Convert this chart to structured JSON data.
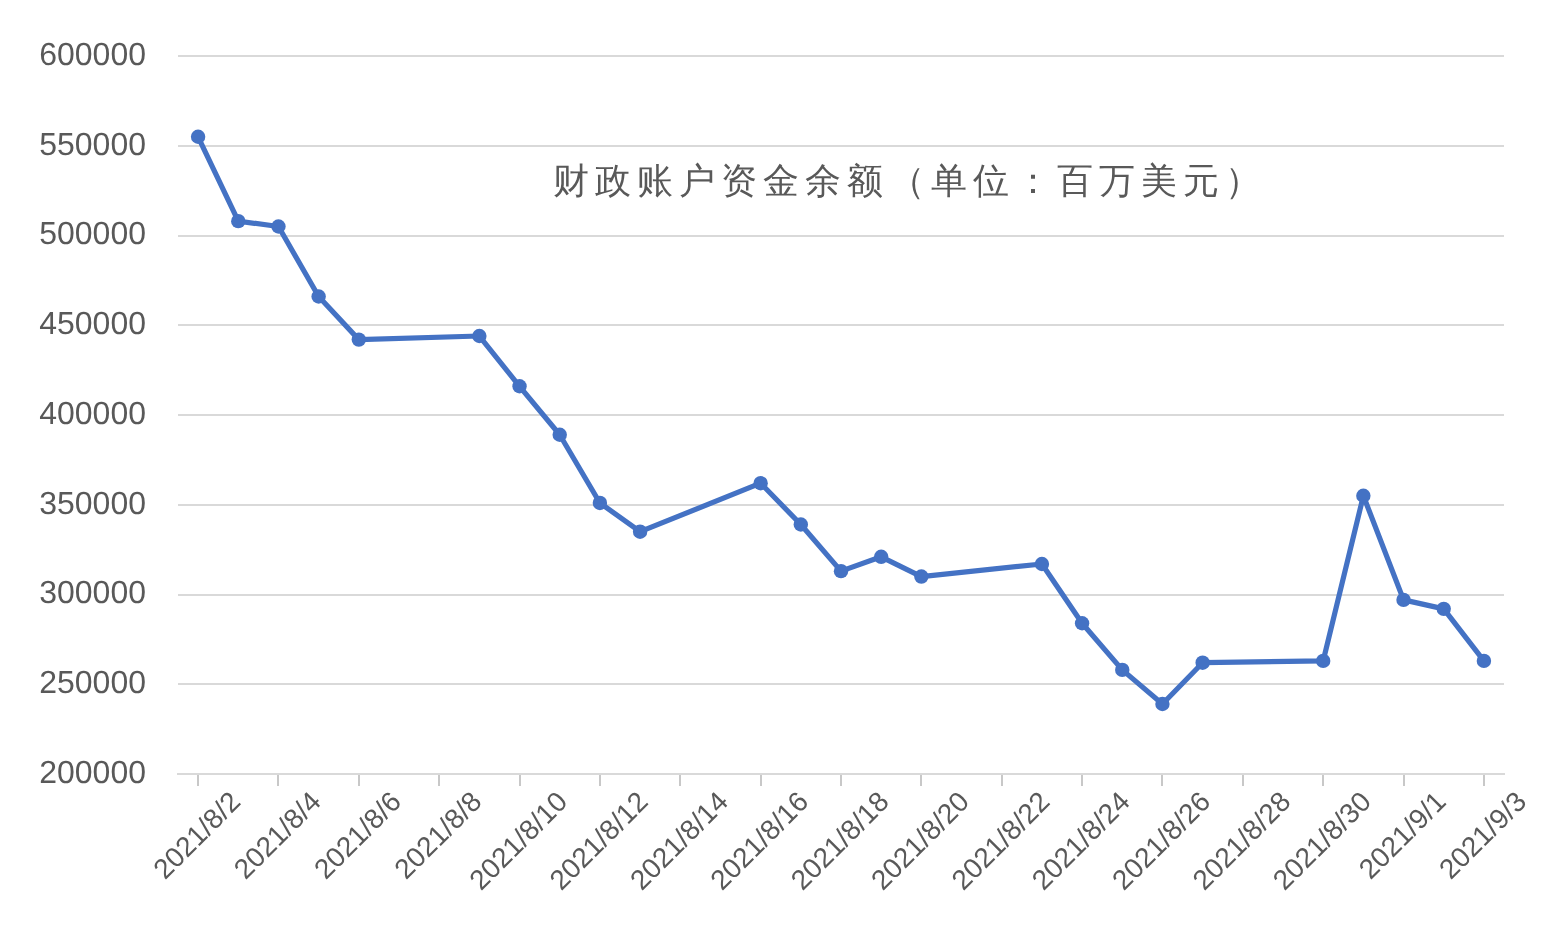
{
  "chart_data": {
    "type": "line",
    "title": "财政账户资金余额（单位：百万美元）",
    "x": [
      "2021-08-02",
      "2021-08-03",
      "2021-08-04",
      "2021-08-05",
      "2021-08-06",
      "2021-08-09",
      "2021-08-10",
      "2021-08-11",
      "2021-08-12",
      "2021-08-13",
      "2021-08-16",
      "2021-08-17",
      "2021-08-18",
      "2021-08-19",
      "2021-08-20",
      "2021-08-23",
      "2021-08-24",
      "2021-08-25",
      "2021-08-26",
      "2021-08-27",
      "2021-08-30",
      "2021-08-31",
      "2021-09-01",
      "2021-09-02",
      "2021-09-03"
    ],
    "series": [
      {
        "color": "#4472c4",
        "values": [
          555000,
          508000,
          505000,
          466000,
          442000,
          444000,
          416000,
          389000,
          351000,
          335000,
          362000,
          339000,
          313000,
          321000,
          310000,
          317000,
          284000,
          258000,
          239000,
          262000,
          263000,
          355000,
          297000,
          292000,
          263000
        ]
      }
    ],
    "xlim": [
      "2021-08-01T12:00",
      "2021-09-03T12:00"
    ],
    "xticks": [
      {
        "value": "2021-08-02",
        "label": "2021/8/2"
      },
      {
        "value": "2021-08-04",
        "label": "2021/8/4"
      },
      {
        "value": "2021-08-06",
        "label": "2021/8/6"
      },
      {
        "value": "2021-08-08",
        "label": "2021/8/8"
      },
      {
        "value": "2021-08-10",
        "label": "2021/8/10"
      },
      {
        "value": "2021-08-12",
        "label": "2021/8/12"
      },
      {
        "value": "2021-08-14",
        "label": "2021/8/14"
      },
      {
        "value": "2021-08-16",
        "label": "2021/8/16"
      },
      {
        "value": "2021-08-18",
        "label": "2021/8/18"
      },
      {
        "value": "2021-08-20",
        "label": "2021/8/20"
      },
      {
        "value": "2021-08-22",
        "label": "2021/8/22"
      },
      {
        "value": "2021-08-24",
        "label": "2021/8/24"
      },
      {
        "value": "2021-08-26",
        "label": "2021/8/26"
      },
      {
        "value": "2021-08-28",
        "label": "2021/8/28"
      },
      {
        "value": "2021-08-30",
        "label": "2021/8/30"
      },
      {
        "value": "2021-09-01",
        "label": "2021/9/1"
      },
      {
        "value": "2021-09-03",
        "label": "2021/9/3"
      }
    ],
    "ylim": [
      200000,
      600000
    ],
    "yticks": [
      200000,
      250000,
      300000,
      350000,
      400000,
      450000,
      500000,
      550000,
      600000
    ],
    "grid": "y",
    "legend": false,
    "marker": "circle",
    "line_style": "solid"
  }
}
